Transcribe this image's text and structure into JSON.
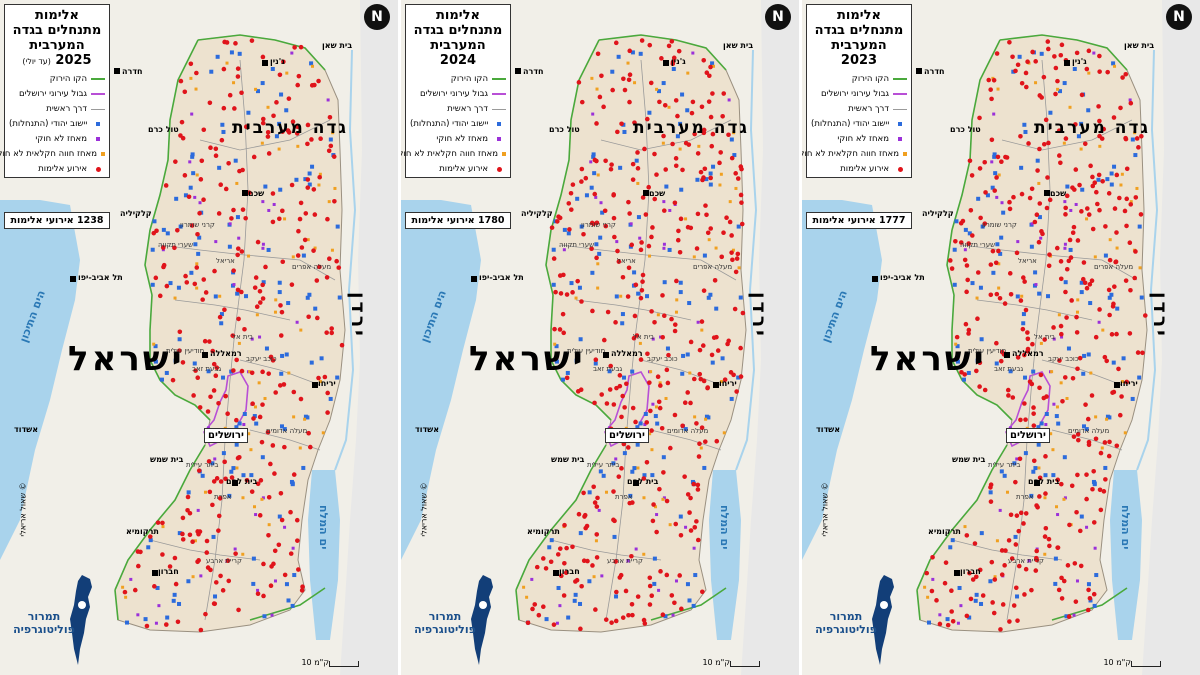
{
  "colors": {
    "sea": "#a9d3ec",
    "land_west": "#f1efe8",
    "west_bank": "#ede2cf",
    "jordan_land": "#e8e8e8",
    "green_line": "#4aa93c",
    "jerusalem_boundary": "#b84fd6",
    "main_road": "#9a9a9a",
    "settlement": "#2c6bdc",
    "outpost": "#9b30d9",
    "farm_outpost": "#f0a020",
    "violence_event": "#e0141b"
  },
  "legend": {
    "title": "אלימות מתנחלים בגדה המערבית",
    "green_line": "הקו הירוק",
    "jerusalem_boundary": "גבול עירוני ירושלים",
    "main_road": "דרך ראשית",
    "settlement": "יישוב יהודי (התנחלות)",
    "outpost": "מאחז לא חוקי",
    "farm_outpost": "מאחז חווה חקלאית לא חוקי",
    "violence": "אירוע אלימות"
  },
  "north_symbol": "N",
  "scale_text": "10 ק\"מ",
  "credit": "תמרור פוליטוגרפיה",
  "copyright": "© שאול אריאלי",
  "labels": {
    "region": "גדה מערבית",
    "israel": "ישראל",
    "jordan": "ירדן",
    "mediterranean": "הים התיכון",
    "dead_sea": "ים המלח",
    "jerusalem": "ירושלים",
    "hadera": "חדרה",
    "tulkarm": "טול כרם",
    "qalqilya": "קלקיליה",
    "tel_aviv": "תל אביב-יפו",
    "ashdod": "אשדוד",
    "beit_shemesh": "בית שמש",
    "beit_shean": "בית שאן",
    "jenin": "ג'נין",
    "nablus": "שכם",
    "ramallah": "רמאללה",
    "jericho": "יריחו",
    "bethlehem": "בית לחם",
    "hebron": "חברון",
    "tarqumiya": "תרקומיא",
    "kiryat_arba": "קריית ארבע",
    "karnei_shomron": "קרני שומרון",
    "shaarei_tikva": "שערי תקווה",
    "ariel": "אריאל",
    "maale_efraim": "מעלה אפרים",
    "modiin_illit": "מודיעין עילית",
    "givat_zeev": "גבעת זאב",
    "beit_el": "בית אל",
    "kochav_yaakov": "כוכב יעקב",
    "maale_adumim": "מעלה אדומים",
    "beitar_illit": "ביתר עילית",
    "efrat": "אפרת"
  },
  "panels": [
    {
      "year": "2025",
      "year_note": "(עד יולי)",
      "count": "1238 אירועי אלימות",
      "seed": 11,
      "violence_n": 290
    },
    {
      "year": "2024",
      "year_note": "",
      "count": "1780 אירועי אלימות",
      "seed": 23,
      "violence_n": 360
    },
    {
      "year": "2023",
      "year_note": "",
      "count": "1777 אירועי אלימות",
      "seed": 37,
      "violence_n": 370
    }
  ]
}
